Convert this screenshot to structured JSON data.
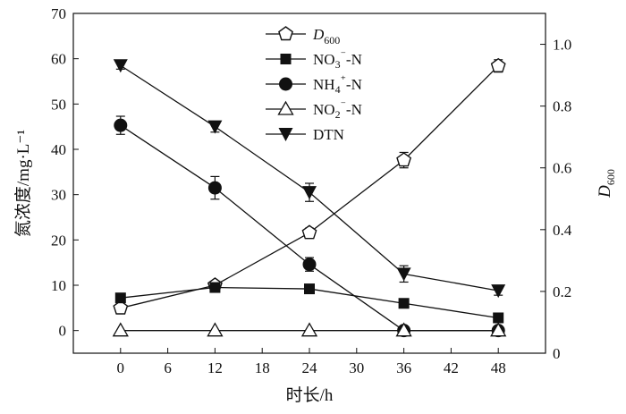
{
  "chart_data": {
    "type": "line",
    "xlabel": "时长/h",
    "ylabel_left": "氮浓度/mg·L⁻¹",
    "ylabel_right": "D600",
    "xticks": [
      "0",
      "6",
      "12",
      "18",
      "24",
      "30",
      "36",
      "42",
      "48"
    ],
    "yticks_left": [
      "0",
      "10",
      "20",
      "30",
      "40",
      "50",
      "60",
      "70"
    ],
    "yticks_right": [
      "0",
      "0.2",
      "0.4",
      "0.6",
      "0.8",
      "1.0"
    ],
    "xlim": [
      -6,
      54
    ],
    "ylim_left": [
      -5,
      70
    ],
    "ylim_right": [
      0,
      1.1
    ],
    "legend_position": "top-center",
    "series": [
      {
        "name": "D600",
        "axis": "right",
        "marker": "open-pentagon",
        "x": [
          0,
          12,
          24,
          36,
          48
        ],
        "y": [
          0.146,
          0.22,
          0.39,
          0.625,
          0.93
        ],
        "err": [
          0,
          0,
          0.015,
          0.025,
          0.02
        ]
      },
      {
        "name": "NO3⁻-N",
        "axis": "left",
        "marker": "filled-square",
        "x": [
          0,
          12,
          24,
          36,
          48
        ],
        "y": [
          7.2,
          9.5,
          9.2,
          6.0,
          2.8
        ],
        "err": [
          0,
          0.5,
          0.8,
          1.0,
          0.4
        ]
      },
      {
        "name": "NH4⁺-N",
        "axis": "left",
        "marker": "filled-circle",
        "x": [
          0,
          12,
          24,
          36,
          48
        ],
        "y": [
          45.3,
          31.5,
          14.6,
          0.0,
          0.0
        ],
        "err": [
          2.0,
          2.5,
          1.5,
          0.3,
          0.3
        ]
      },
      {
        "name": "NO2⁻-N",
        "axis": "left",
        "marker": "open-triangle",
        "x": [
          0,
          12,
          24,
          36,
          48
        ],
        "y": [
          0.0,
          0.0,
          0.0,
          0.0,
          0.0
        ],
        "err": [
          0,
          0,
          0,
          0,
          0
        ]
      },
      {
        "name": "DTN",
        "axis": "left",
        "marker": "filled-triangle-down",
        "x": [
          0,
          12,
          24,
          36,
          48
        ],
        "y": [
          58.5,
          45.0,
          30.5,
          12.5,
          8.8
        ],
        "err": [
          0.8,
          1.2,
          2.0,
          1.8,
          1.0
        ]
      }
    ]
  }
}
